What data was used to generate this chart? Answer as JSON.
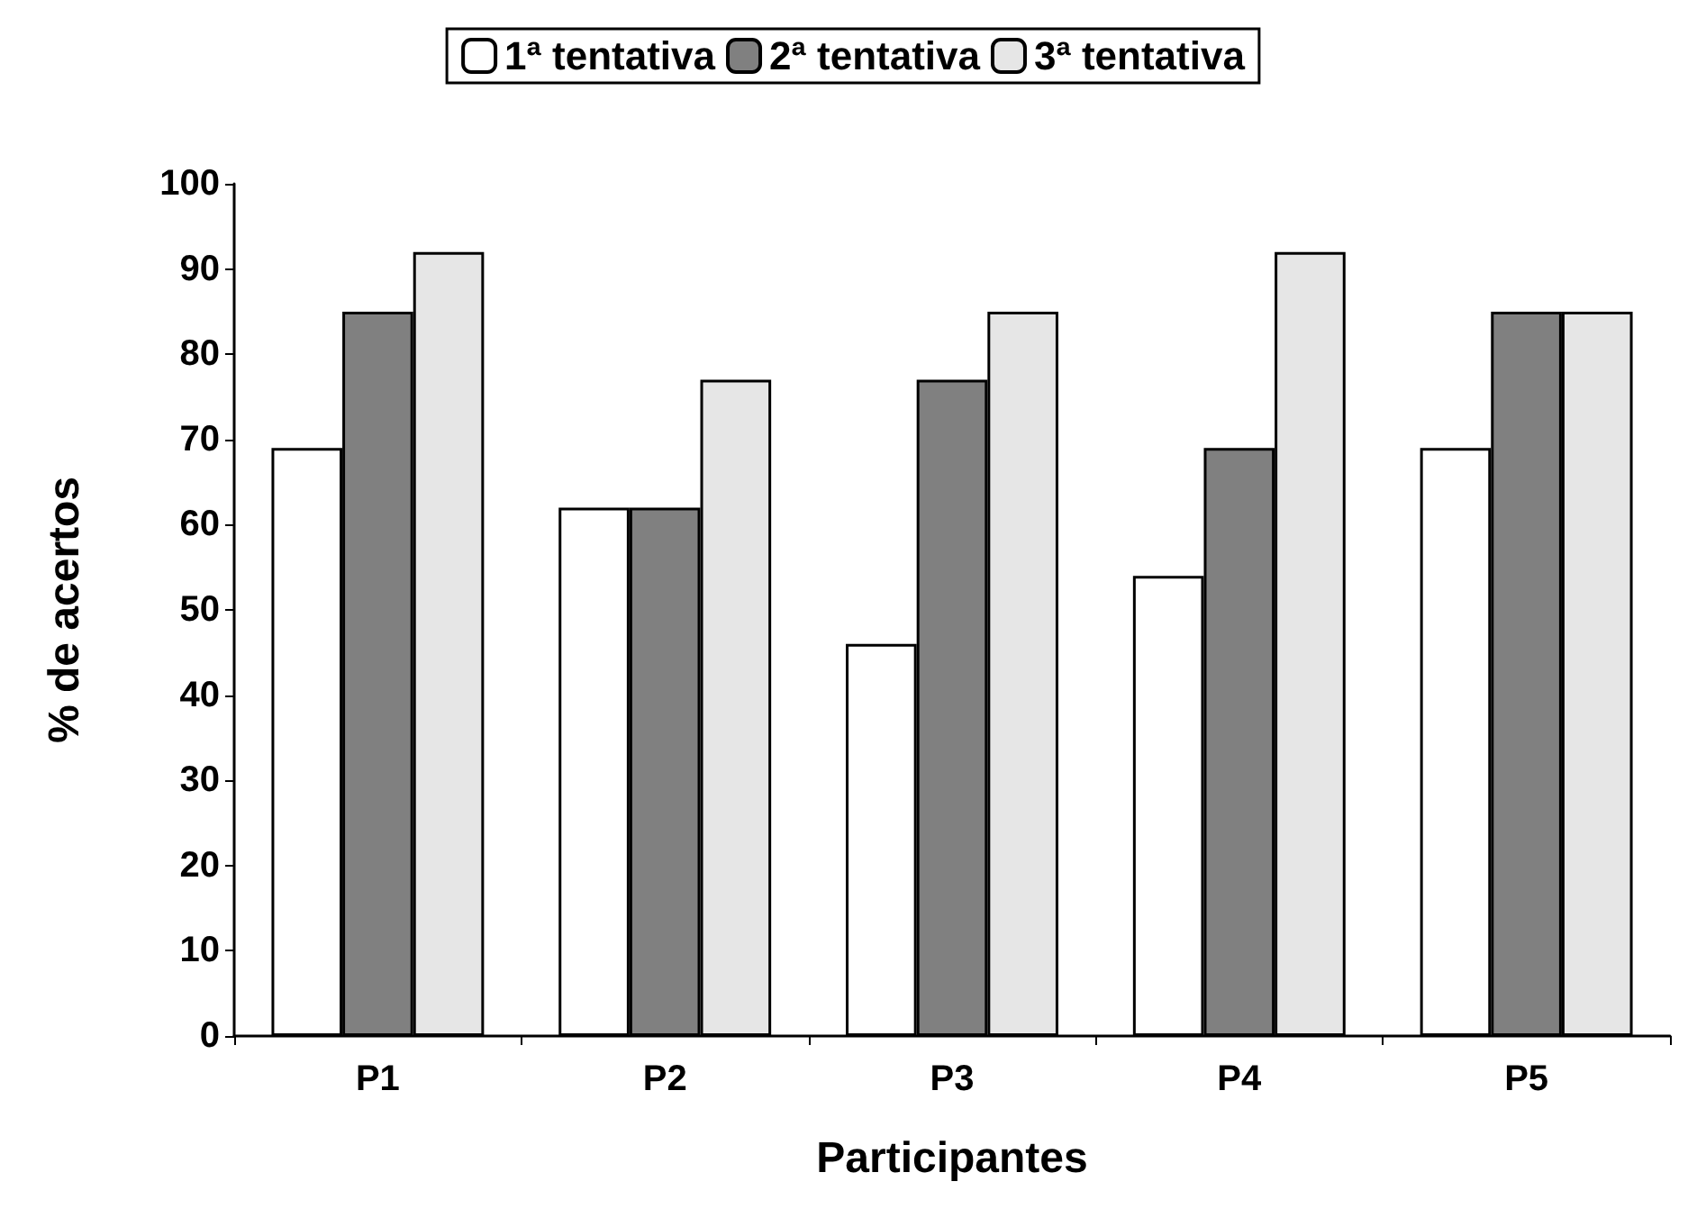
{
  "chart_data": {
    "type": "bar",
    "xlabel": "Participantes",
    "ylabel": "% de acertos",
    "categories": [
      "P1",
      "P2",
      "P3",
      "P4",
      "P5"
    ],
    "series": [
      {
        "name": "1ª tentativa",
        "color": "#ffffff",
        "values": [
          69,
          62,
          46,
          54,
          69
        ]
      },
      {
        "name": "2ª tentativa",
        "color": "#808080",
        "values": [
          85,
          62,
          77,
          69,
          85
        ]
      },
      {
        "name": "3ª tentativa",
        "color": "#e6e6e6",
        "values": [
          92,
          77,
          85,
          92,
          85
        ]
      }
    ],
    "ylim": [
      0,
      100
    ],
    "yticks": [
      0,
      10,
      20,
      30,
      40,
      50,
      60,
      70,
      80,
      90,
      100
    ],
    "grid": false,
    "legend": "top"
  }
}
